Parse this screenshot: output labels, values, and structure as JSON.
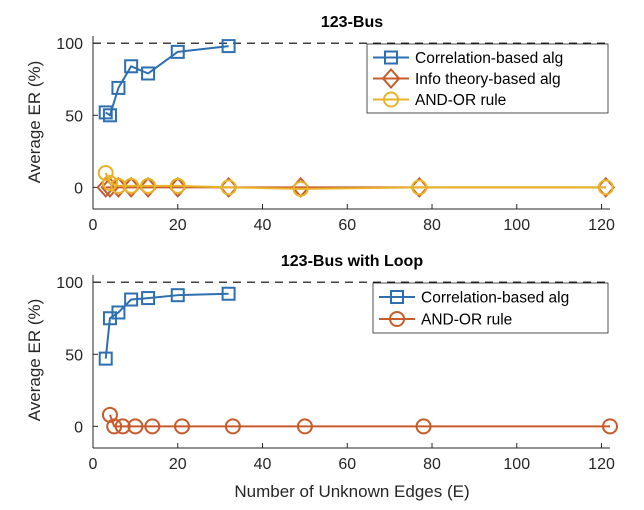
{
  "chart_data": [
    {
      "type": "line",
      "title": "123-Bus",
      "xlabel": "",
      "ylabel": "Average ER (%)",
      "xlim": [
        0,
        122
      ],
      "ylim": [
        -15,
        105
      ],
      "xticks": [
        "0",
        "20",
        "40",
        "60",
        "80",
        "100",
        "120"
      ],
      "yticks": [
        "0",
        "50",
        "100"
      ],
      "reference_line": {
        "y": 100,
        "style": "dashed",
        "color": "#000000"
      },
      "legend_position": "top-right",
      "series": [
        {
          "name": "Correlation-based alg",
          "color": "#2e6fb0",
          "marker": "square",
          "x": [
            3,
            4,
            6,
            9,
            13,
            20,
            32
          ],
          "y": [
            52,
            50,
            69,
            84,
            79,
            94,
            98
          ]
        },
        {
          "name": "Info theory-based alg",
          "color": "#c65c2b",
          "marker": "diamond",
          "x": [
            3,
            4,
            6,
            9,
            13,
            20,
            32,
            49,
            77,
            121
          ],
          "y": [
            0,
            0,
            0,
            0,
            0,
            0,
            0,
            0,
            0,
            0
          ]
        },
        {
          "name": "AND-OR rule",
          "color": "#e8b229",
          "marker": "circle",
          "x": [
            3,
            4,
            6,
            9,
            13,
            20,
            32,
            49,
            77,
            121
          ],
          "y": [
            10,
            3,
            1,
            1,
            1,
            1,
            0,
            -1,
            0,
            0
          ]
        }
      ]
    },
    {
      "type": "line",
      "title": "123-Bus with Loop",
      "xlabel": "Number of Unknown Edges (E)",
      "ylabel": "Average ER (%)",
      "xlim": [
        0,
        122
      ],
      "ylim": [
        -15,
        105
      ],
      "xticks": [
        "0",
        "20",
        "40",
        "60",
        "80",
        "100",
        "120"
      ],
      "yticks": [
        "0",
        "50",
        "100"
      ],
      "reference_line": {
        "y": 100,
        "style": "dashed",
        "color": "#000000"
      },
      "legend_position": "top-right",
      "series": [
        {
          "name": "Correlation-based alg",
          "color": "#2e6fb0",
          "marker": "square",
          "x": [
            3,
            4,
            6,
            9,
            13,
            20,
            32
          ],
          "y": [
            47,
            75,
            79,
            88,
            89,
            91,
            92
          ]
        },
        {
          "name": "AND-OR rule",
          "color": "#c65c2b",
          "marker": "circle",
          "x": [
            4,
            5,
            7,
            10,
            14,
            21,
            33,
            50,
            78,
            122
          ],
          "y": [
            8,
            0,
            0,
            0,
            0,
            0,
            0,
            0,
            0,
            0
          ]
        }
      ]
    }
  ]
}
